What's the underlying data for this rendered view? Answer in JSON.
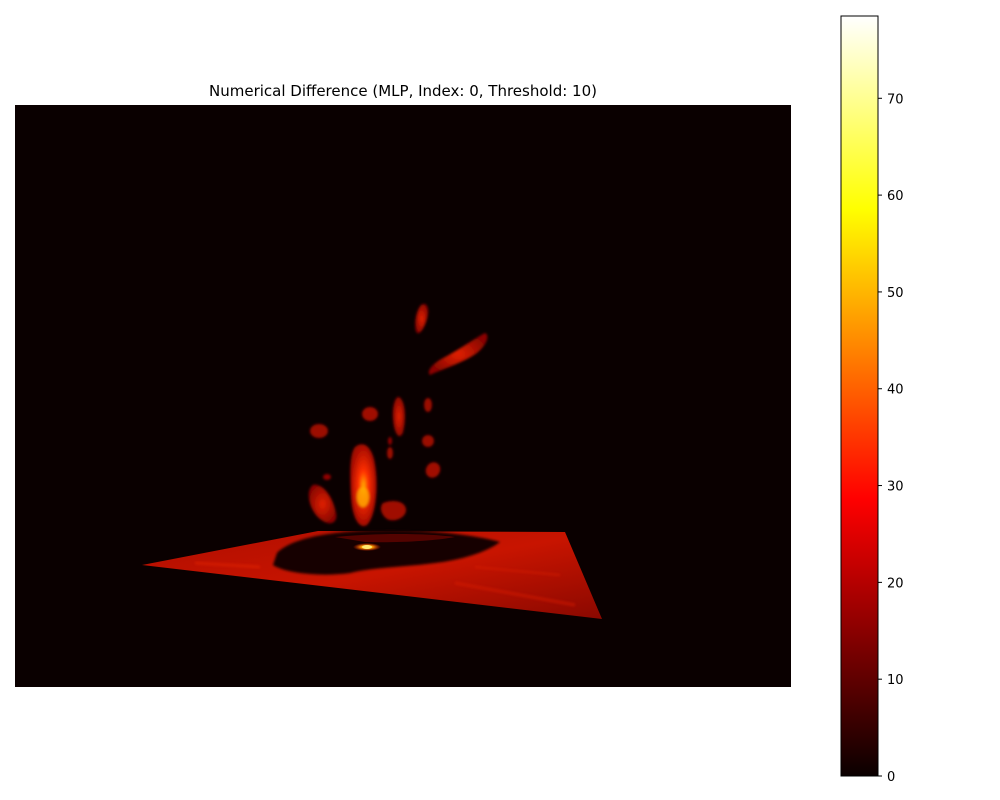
{
  "title": "Numerical Difference (MLP, Index: 0, Threshold: 10)",
  "chart_data": {
    "type": "heatmap",
    "title": "Numerical Difference (MLP, Index: 0, Threshold: 10)",
    "description_axes": "3D volume render, axes hidden",
    "colormap": "hot",
    "background_color": "#0a0000",
    "colorbar": {
      "vmin": 0,
      "vmax": 78.5,
      "ticks": [
        0,
        10,
        20,
        30,
        40,
        50,
        60,
        70
      ],
      "tick_labels": [
        "0",
        "10",
        "20",
        "30",
        "40",
        "50",
        "60",
        "70"
      ],
      "orientation": "vertical",
      "placement": "right"
    },
    "threshold": 10,
    "peak_value": 60
  }
}
